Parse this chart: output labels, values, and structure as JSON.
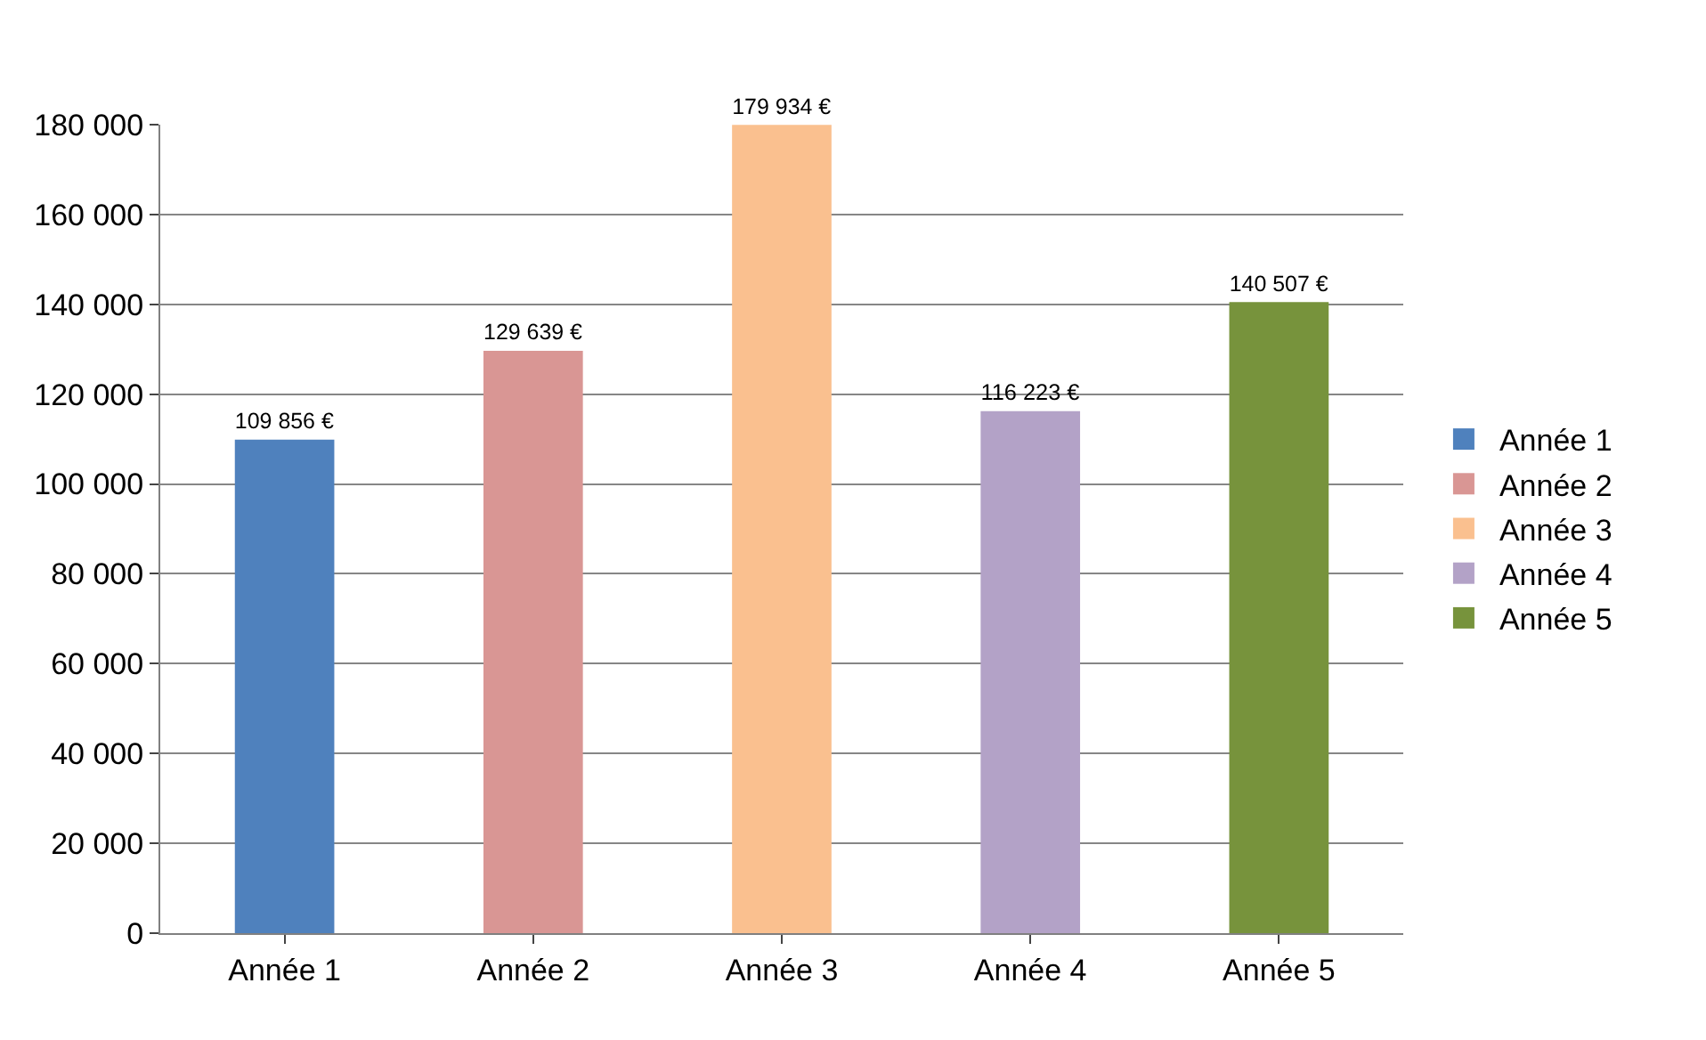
{
  "chart_data": {
    "type": "bar",
    "categories": [
      "Année 1",
      "Année 2",
      "Année 3",
      "Année 4",
      "Année 5"
    ],
    "series": [
      {
        "name": "Année 1",
        "color": "#4f81bd",
        "values": [
          109856,
          null,
          null,
          null,
          null
        ],
        "value_labels": [
          "109 856 €",
          null,
          null,
          null,
          null
        ]
      },
      {
        "name": "Année 2",
        "color": "#d99694",
        "values": [
          null,
          129639,
          null,
          null,
          null
        ],
        "value_labels": [
          null,
          "129 639 €",
          null,
          null,
          null
        ]
      },
      {
        "name": "Année 3",
        "color": "#fac08f",
        "values": [
          null,
          null,
          179934,
          null,
          null
        ],
        "value_labels": [
          null,
          null,
          "179 934 €",
          null,
          null
        ]
      },
      {
        "name": "Année 4",
        "color": "#b3a2c7",
        "values": [
          null,
          null,
          null,
          116223,
          null
        ],
        "value_labels": [
          null,
          null,
          null,
          "116 223 €",
          null
        ]
      },
      {
        "name": "Année 5",
        "color": "#77933c",
        "values": [
          null,
          null,
          null,
          null,
          140507
        ],
        "value_labels": [
          null,
          null,
          null,
          null,
          "140 507 €"
        ]
      }
    ],
    "ylim": [
      0,
      180000
    ],
    "yticks": [
      {
        "value": 0,
        "label": "0"
      },
      {
        "value": 20000,
        "label": "20 000"
      },
      {
        "value": 40000,
        "label": "40 000"
      },
      {
        "value": 60000,
        "label": "60 000"
      },
      {
        "value": 80000,
        "label": "80 000"
      },
      {
        "value": 100000,
        "label": "100 000"
      },
      {
        "value": 120000,
        "label": "120 000"
      },
      {
        "value": 140000,
        "label": "140 000"
      },
      {
        "value": 160000,
        "label": "160 000"
      },
      {
        "value": 180000,
        "label": "180 000"
      }
    ],
    "grid": "y",
    "legend": "right"
  }
}
